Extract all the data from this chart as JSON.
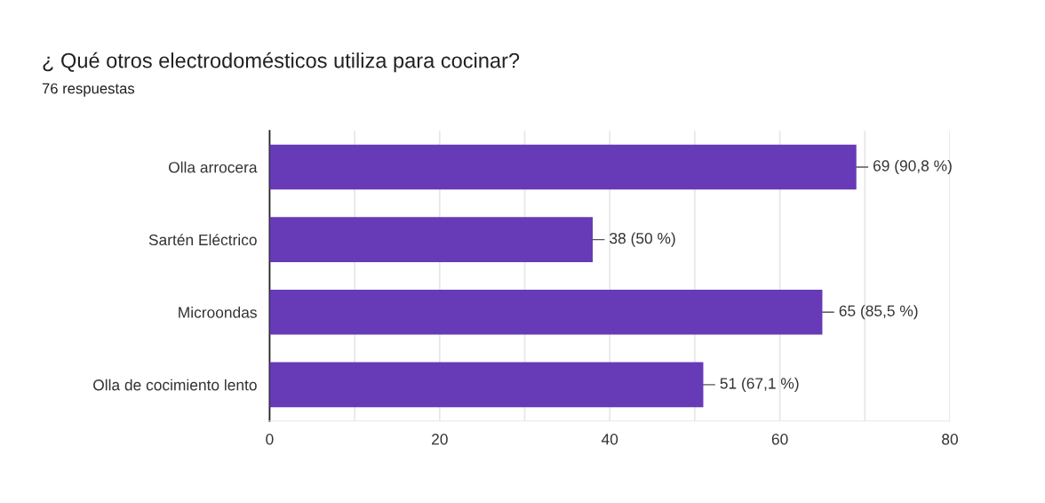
{
  "chart_data": {
    "type": "bar",
    "orientation": "horizontal",
    "title": "¿ Qué otros electrodomésticos utiliza para cocinar?",
    "subtitle": "76 respuestas",
    "categories": [
      "Olla arrocera",
      "Sartén Eléctrico",
      "Microondas",
      "Olla de cocimiento lento"
    ],
    "values": [
      69,
      38,
      65,
      51
    ],
    "color": "#673ab7",
    "value_labels": [
      "69 (90,8 %)",
      "38 (50 %)",
      "65 (85,5 %)",
      "51 (67,1 %)"
    ],
    "xlim": [
      0,
      80
    ],
    "xticks": [
      0,
      {
        "value": 10,
        "label": null
      },
      20,
      {
        "value": 30,
        "label": null
      },
      40,
      {
        "value": 50,
        "label": null
      },
      60,
      {
        "value": 70,
        "label": null
      },
      80
    ],
    "grid": "x"
  }
}
